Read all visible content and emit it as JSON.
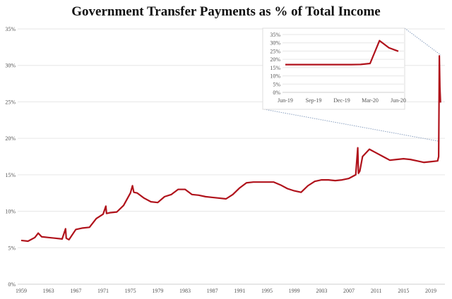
{
  "chart_data": {
    "type": "line",
    "title": "Government Transfer Payments as % of  Total Income",
    "color": "#b0121b",
    "main": {
      "ylim": [
        0,
        35
      ],
      "xlim": [
        1959,
        2020.6
      ],
      "yticks": [
        "0%",
        "5%",
        "10%",
        "15%",
        "20%",
        "25%",
        "30%",
        "35%"
      ],
      "xticks": [
        "1959",
        "1963",
        "1967",
        "1971",
        "1975",
        "1979",
        "1983",
        "1987",
        "1991",
        "1995",
        "1999",
        "2003",
        "2007",
        "2011",
        "2015",
        "2019"
      ],
      "grid": true,
      "x": [
        1959,
        1960,
        1961,
        1961.5,
        1962,
        1963,
        1964,
        1965,
        1965.5,
        1965.6,
        1966,
        1967,
        1968,
        1969,
        1970,
        1971,
        1971.4,
        1971.5,
        1972,
        1973,
        1974,
        1975,
        1975.3,
        1975.5,
        1976,
        1977,
        1978,
        1979,
        1980,
        1981,
        1982,
        1983,
        1984,
        1985,
        1986,
        1987,
        1988,
        1989,
        1990,
        1991,
        1992,
        1993,
        1994,
        1995,
        1996,
        1997,
        1998,
        1999,
        2000,
        2001,
        2002,
        2003,
        2004,
        2005,
        2006,
        2007,
        2008,
        2008.3,
        2008.4,
        2008.6,
        2009,
        2010,
        2011,
        2012,
        2013,
        2014,
        2015,
        2016,
        2017,
        2018,
        2019,
        2020.0,
        2020.15,
        2020.25,
        2020.33,
        2020.42
      ],
      "y": [
        6.0,
        5.9,
        6.4,
        7.0,
        6.5,
        6.4,
        6.3,
        6.2,
        7.6,
        6.3,
        6.1,
        7.5,
        7.7,
        7.8,
        9.0,
        9.6,
        10.7,
        9.7,
        9.8,
        9.9,
        10.8,
        12.5,
        13.5,
        12.6,
        12.5,
        11.8,
        11.3,
        11.2,
        12.0,
        12.3,
        13.0,
        13.0,
        12.3,
        12.2,
        12.0,
        11.9,
        11.8,
        11.7,
        12.3,
        13.2,
        13.9,
        14.0,
        14.0,
        14.0,
        14.0,
        13.6,
        13.1,
        12.8,
        12.6,
        13.5,
        14.1,
        14.3,
        14.3,
        14.2,
        14.3,
        14.5,
        15.0,
        18.7,
        15.2,
        15.5,
        17.5,
        18.5,
        18.0,
        17.5,
        17.0,
        17.1,
        17.2,
        17.1,
        16.9,
        16.7,
        16.8,
        16.9,
        17.5,
        31.3,
        27.0,
        24.9
      ]
    },
    "inset": {
      "ylim": [
        0,
        35
      ],
      "yticks": [
        "0%",
        "5%",
        "10%",
        "15%",
        "20%",
        "25%",
        "30%",
        "35%"
      ],
      "xticks": [
        "Jun-19",
        "Sep-19",
        "Dec-19",
        "Mar-20",
        "Jun-20"
      ],
      "x": [
        "Jun-19",
        "Jul-19",
        "Aug-19",
        "Sep-19",
        "Oct-19",
        "Nov-19",
        "Dec-19",
        "Jan-20",
        "Feb-20",
        "Mar-20",
        "Apr-20",
        "May-20",
        "Jun-20"
      ],
      "y": [
        16.8,
        16.8,
        16.8,
        16.8,
        16.8,
        16.8,
        16.8,
        16.8,
        16.9,
        17.5,
        31.3,
        27.0,
        24.9
      ]
    }
  }
}
